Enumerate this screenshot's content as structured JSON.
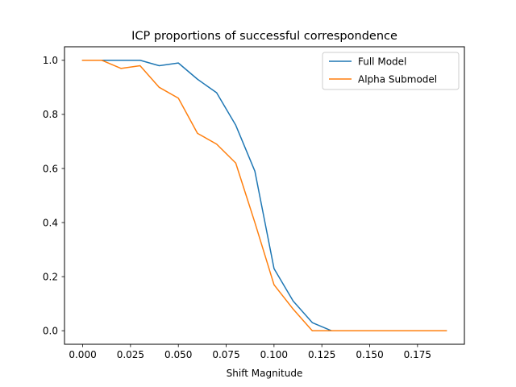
{
  "chart_data": {
    "type": "line",
    "title": "ICP proportions of successful correspondence",
    "xlabel": "Shift Magnitude",
    "ylabel": "",
    "xlim": [
      -0.0095,
      0.1995
    ],
    "ylim": [
      -0.05,
      1.05
    ],
    "x_ticks": [
      0.0,
      0.025,
      0.05,
      0.075,
      0.1,
      0.125,
      0.15,
      0.175
    ],
    "x_tick_labels": [
      "0.000",
      "0.025",
      "0.050",
      "0.075",
      "0.100",
      "0.125",
      "0.150",
      "0.175"
    ],
    "y_ticks": [
      0.0,
      0.2,
      0.4,
      0.6,
      0.8,
      1.0
    ],
    "y_tick_labels": [
      "0.0",
      "0.2",
      "0.4",
      "0.6",
      "0.8",
      "1.0"
    ],
    "grid": false,
    "legend_position": "top-right",
    "x": [
      0.0,
      0.01,
      0.02,
      0.03,
      0.04,
      0.05,
      0.06,
      0.07,
      0.08,
      0.09,
      0.1,
      0.11,
      0.12,
      0.13,
      0.14,
      0.15,
      0.16,
      0.17,
      0.18,
      0.19
    ],
    "series": [
      {
        "name": "Full Model",
        "color": "#1f77b4",
        "values": [
          1.0,
          1.0,
          1.0,
          1.0,
          0.98,
          0.99,
          0.93,
          0.88,
          0.76,
          0.59,
          0.23,
          0.11,
          0.03,
          0.0,
          0.0,
          0.0,
          0.0,
          0.0,
          0.0,
          0.0
        ]
      },
      {
        "name": "Alpha Submodel",
        "color": "#ff7f0e",
        "values": [
          1.0,
          1.0,
          0.97,
          0.98,
          0.9,
          0.86,
          0.73,
          0.69,
          0.62,
          0.4,
          0.17,
          0.08,
          0.0,
          0.0,
          0.0,
          0.0,
          0.0,
          0.0,
          0.0,
          0.0
        ]
      }
    ]
  }
}
